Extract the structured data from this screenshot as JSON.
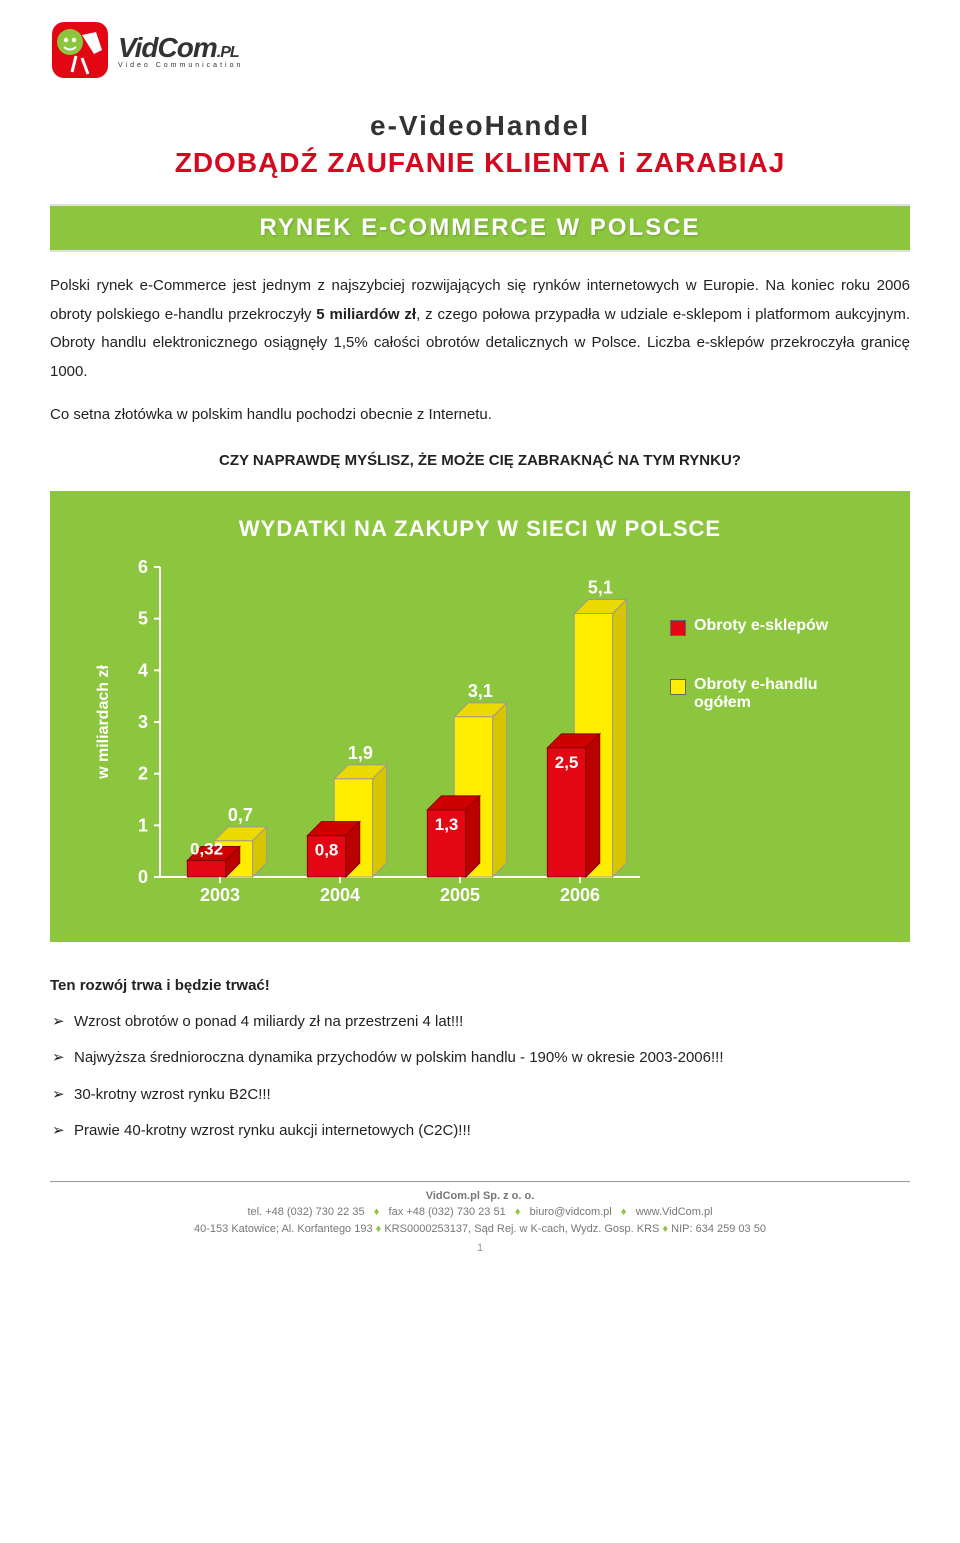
{
  "logo": {
    "brand": "VidCom",
    "tld": ".PL",
    "tagline": "Video Communication"
  },
  "titles": {
    "line1": "e-VideoHandel",
    "line2": "ZDOBĄDŹ ZAUFANIE KLIENTA i ZARABIAJ"
  },
  "section_banner": "RYNEK E-COMMERCE W POLSCE",
  "para1_a": "Polski rynek e-Commerce jest jednym z najszybciej rozwijających się rynków internetowych w Europie. Na koniec roku 2006 obroty polskiego e-handlu przekroczyły ",
  "para1_bold": "5 miliardów zł",
  "para1_b": ", z czego połowa przypadła w udziale e-sklepom i platformom aukcyjnym. Obroty handlu elektronicznego osiągnęły 1,5% całości obrotów detalicznych w Polsce. Liczba e-sklepów przekroczyła granicę 1000.",
  "para2": "Co setna złotówka w polskim handlu pochodzi obecnie z Internetu.",
  "emphasis": "CZY NAPRAWDĘ MYŚLISZ, ŻE MOŻE CIĘ ZABRAKNĄĆ NA TYM RYNKU?",
  "chart": {
    "title": "WYDATKI NA ZAKUPY W SIECI W POLSCE",
    "ylabel": "w miliardach zł",
    "categories": [
      "2003",
      "2004",
      "2005",
      "2006"
    ],
    "series": [
      {
        "name": "Obroty e-sklepów",
        "color": "#e30613",
        "values": [
          0.32,
          0.8,
          1.3,
          2.5
        ],
        "labels": [
          "0,32",
          "0,8",
          "1,3",
          "2,5"
        ]
      },
      {
        "name": "Obroty e-handlu ogółem",
        "color": "#ffed00",
        "values": [
          0.7,
          1.9,
          3.1,
          5.1
        ],
        "labels": [
          "0,7",
          "1,9",
          "3,1",
          "5,1"
        ]
      }
    ],
    "yticks": [
      "0",
      "1",
      "2",
      "3",
      "4",
      "5",
      "6"
    ],
    "ymax": 6,
    "axis_color": "#ffffff",
    "tick_color": "#ffffff",
    "bg_color": "#8cc63f"
  },
  "subheading": "Ten rozwój trwa i będzie trwać!",
  "bullets": {
    "b1": "Wzrost obrotów o ponad 4 miliardy zł na przestrzeni 4 lat!!!",
    "b2": "Najwyższa średnioroczna dynamika przychodów w polskim handlu - 190% w okresie 2003-2006!!!",
    "b3": "30-krotny wzrost rynku B2C!!!",
    "b4": "Prawie 40-krotny wzrost rynku aukcji internetowych (C2C)!!!"
  },
  "footer": {
    "company": "VidCom.pl Sp. z o. o.",
    "tel_label": "tel.",
    "tel": "+48 (032) 730 22 35",
    "fax_label": "fax",
    "fax": "+48 (032) 730 23 51",
    "email": "biuro@vidcom.pl",
    "site": "www.VidCom.pl",
    "addr": "40-153 Katowice; Al. Korfantego 193",
    "krs_label": "KRS0000253137, Sąd Rej. w K-cach, Wydz. Gosp. KRS",
    "nip_label": "NIP:",
    "nip": "634 259 03 50",
    "page": "1"
  }
}
